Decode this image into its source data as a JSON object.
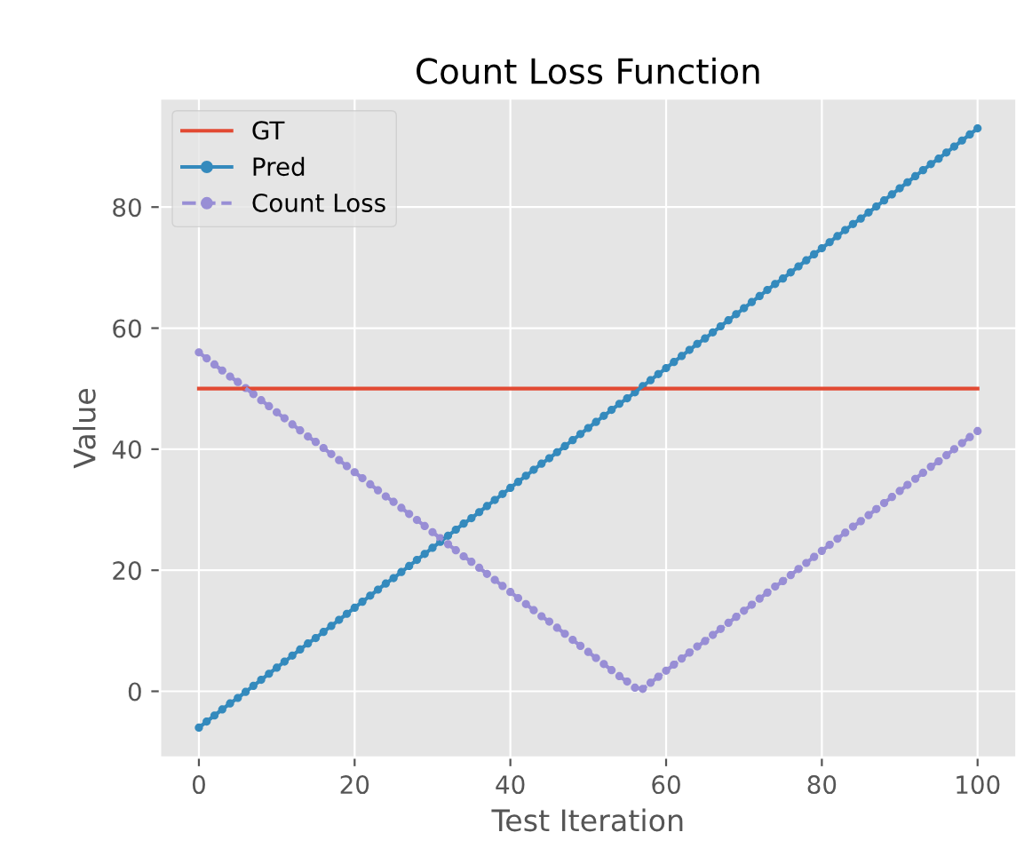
{
  "chart_data": {
    "type": "line",
    "title": "Count Loss Function",
    "xlabel": "Test Iteration",
    "ylabel": "Value",
    "x": [
      0,
      1,
      2,
      3,
      4,
      5,
      6,
      7,
      8,
      9,
      10,
      11,
      12,
      13,
      14,
      15,
      16,
      17,
      18,
      19,
      20,
      21,
      22,
      23,
      24,
      25,
      26,
      27,
      28,
      29,
      30,
      31,
      32,
      33,
      34,
      35,
      36,
      37,
      38,
      39,
      40,
      41,
      42,
      43,
      44,
      45,
      46,
      47,
      48,
      49,
      50,
      51,
      52,
      53,
      54,
      55,
      56,
      57,
      58,
      59,
      60,
      61,
      62,
      63,
      64,
      65,
      66,
      67,
      68,
      69,
      70,
      71,
      72,
      73,
      74,
      75,
      76,
      77,
      78,
      79,
      80,
      81,
      82,
      83,
      84,
      85,
      86,
      87,
      88,
      89,
      90,
      91,
      92,
      93,
      94,
      95,
      96,
      97,
      98,
      99,
      100
    ],
    "series": [
      {
        "name": "GT",
        "color": "#e24a33",
        "marker": "none",
        "line_style": "solid",
        "x": [
          0,
          100
        ],
        "values": [
          50,
          50
        ]
      },
      {
        "name": "Pred",
        "color": "#348abd",
        "marker": "circle",
        "line_style": "solid",
        "values": [
          -6,
          -5,
          -4,
          -3,
          -2,
          -1.1,
          -0.1,
          0.9,
          1.9,
          2.9,
          3.9,
          4.9,
          5.9,
          6.9,
          7.9,
          8.8,
          9.8,
          10.8,
          11.8,
          12.8,
          13.8,
          14.8,
          15.8,
          16.8,
          17.8,
          18.7,
          19.7,
          20.7,
          21.7,
          22.7,
          23.7,
          24.7,
          25.7,
          26.7,
          27.7,
          28.6,
          29.6,
          30.6,
          31.6,
          32.6,
          33.6,
          34.6,
          35.6,
          36.6,
          37.6,
          38.5,
          39.5,
          40.5,
          41.5,
          42.5,
          43.5,
          44.5,
          45.5,
          46.5,
          47.5,
          48.4,
          49.4,
          50.4,
          51.4,
          52.4,
          53.4,
          54.4,
          55.4,
          56.4,
          57.4,
          58.3,
          59.3,
          60.3,
          61.3,
          62.3,
          63.3,
          64.3,
          65.3,
          66.3,
          67.3,
          68.2,
          69.2,
          70.2,
          71.2,
          72.2,
          73.2,
          74.2,
          75.2,
          76.2,
          77.2,
          78.1,
          79.1,
          80.1,
          81.1,
          82.1,
          83.1,
          84.1,
          85.1,
          86.1,
          87.1,
          88,
          89,
          90,
          91,
          92,
          93
        ]
      },
      {
        "name": "Count Loss",
        "color": "#988ed5",
        "marker": "circle",
        "line_style": "dashed",
        "values": [
          56,
          55,
          54,
          53,
          52,
          51.1,
          50.1,
          49.1,
          48.1,
          47.1,
          46.1,
          45.1,
          44.1,
          43.1,
          42.1,
          41.2,
          40.2,
          39.2,
          38.2,
          37.2,
          36.2,
          35.2,
          34.2,
          33.2,
          32.2,
          31.3,
          30.3,
          29.3,
          28.3,
          27.3,
          26.3,
          25.3,
          24.3,
          23.3,
          22.3,
          21.4,
          20.4,
          19.4,
          18.4,
          17.4,
          16.4,
          15.4,
          14.4,
          13.4,
          12.4,
          11.5,
          10.5,
          9.5,
          8.5,
          7.5,
          6.5,
          5.5,
          4.5,
          3.5,
          2.5,
          1.6,
          0.6,
          0.4,
          1.4,
          2.4,
          3.4,
          4.4,
          5.4,
          6.4,
          7.4,
          8.3,
          9.3,
          10.3,
          11.3,
          12.3,
          13.3,
          14.3,
          15.3,
          16.3,
          17.3,
          18.2,
          19.2,
          20.2,
          21.2,
          22.2,
          23.2,
          24.2,
          25.2,
          26.2,
          27.2,
          28.1,
          29.1,
          30.1,
          31.1,
          32.1,
          33.1,
          34.1,
          35.1,
          36.1,
          37.1,
          38,
          39,
          40,
          41,
          42,
          43
        ]
      }
    ],
    "xlim": [
      -5,
      105
    ],
    "ylim": [
      -10.95,
      97.95
    ],
    "xticks": [
      0,
      20,
      40,
      60,
      80,
      100
    ],
    "yticks": [
      0,
      20,
      40,
      60,
      80
    ],
    "grid": true,
    "legend": "top left"
  }
}
